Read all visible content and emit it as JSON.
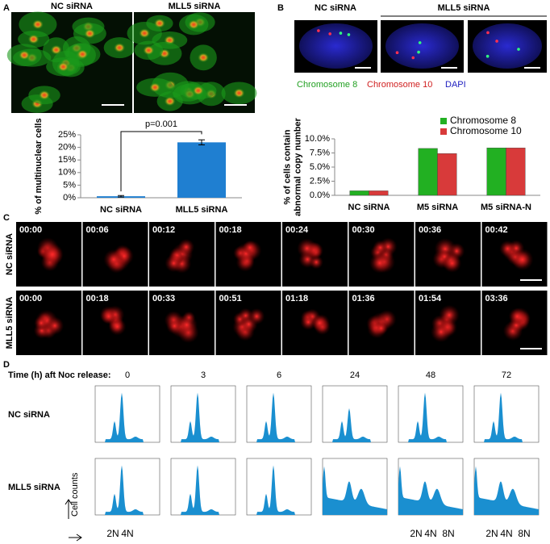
{
  "panels": {
    "A": {
      "letter": "A",
      "images": [
        "NC siRNA",
        "MLL5 siRNA"
      ]
    },
    "B": {
      "letter": "B",
      "images": [
        "NC siRNA",
        "MLL5 siRNA"
      ],
      "stains": [
        "Chromosome 8",
        "Chromosome 10",
        "DAPI"
      ]
    },
    "C": {
      "letter": "C",
      "rows": [
        {
          "label": "NC siRNA",
          "times": [
            "00:00",
            "00:06",
            "00:12",
            "00:18",
            "00:24",
            "00:30",
            "00:36",
            "00:42"
          ]
        },
        {
          "label": "MLL5 siRNA",
          "times": [
            "00:00",
            "00:18",
            "00:33",
            "00:51",
            "01:18",
            "01:36",
            "01:54",
            "03:36"
          ]
        }
      ]
    },
    "D": {
      "letter": "D",
      "time_label": "Time (h) aft Noc release:",
      "times": [
        "0",
        "3",
        "6",
        "24",
        "48",
        "72"
      ],
      "rows": [
        "NC siRNA",
        "MLL5 siRNA"
      ],
      "axis_label": "Cell counts",
      "ploidy": [
        "2N",
        "4N",
        "8N"
      ]
    }
  },
  "chart_data": [
    {
      "type": "bar",
      "ylabel": [
        "% of multinuclear cells"
      ],
      "categories": [
        "NC siRNA",
        "MLL5 siRNA"
      ],
      "values": [
        0.6,
        22
      ],
      "errors": [
        0.3,
        1
      ],
      "color": "#1f7fd1",
      "ylim": [
        0,
        25
      ],
      "yticks": [
        {
          "value": 0,
          "label": "0%"
        },
        {
          "value": 5,
          "label": "5%"
        },
        {
          "value": 10,
          "label": "10%"
        },
        {
          "value": 15,
          "label": "15%"
        },
        {
          "value": 20,
          "label": "20%"
        },
        {
          "value": 25,
          "label": "25%"
        }
      ],
      "annotation": "p=0.001"
    },
    {
      "type": "grouped_bar",
      "ylabel": [
        "% of cells contain",
        "abnormal copy number"
      ],
      "categories": [
        "NC siRNA",
        "M5 siRNA",
        "M5 siRNA-N"
      ],
      "series": [
        {
          "name": "Chromosome 8",
          "color": "#22b022",
          "values": [
            0.8,
            8.3,
            8.4
          ]
        },
        {
          "name": "Chromosome 10",
          "color": "#d83a3a",
          "values": [
            0.8,
            7.4,
            8.4
          ]
        }
      ],
      "ylim": [
        0,
        10
      ],
      "yticks": [
        {
          "value": 0,
          "label": "0.0%"
        },
        {
          "value": 2.5,
          "label": "2.5%"
        },
        {
          "value": 5,
          "label": "5.0%"
        },
        {
          "value": 7.5,
          "label": "7.5%"
        },
        {
          "value": 10,
          "label": "10.0%"
        }
      ],
      "legend": "top-right"
    }
  ]
}
